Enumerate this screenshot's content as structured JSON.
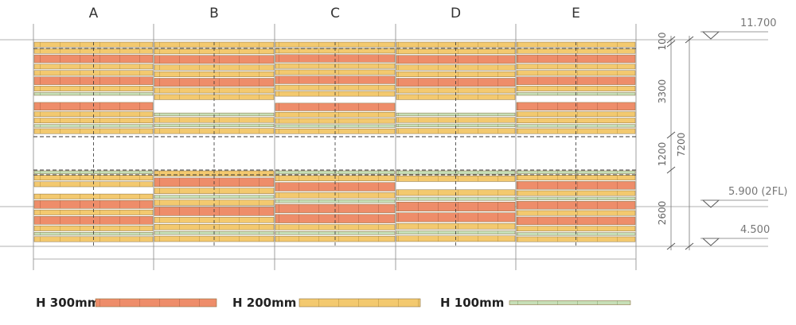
{
  "columns": [
    "A",
    "B",
    "C",
    "D",
    "E"
  ],
  "dimensions": {
    "d1": "100",
    "d2": "3300",
    "d3": "1200",
    "d4": "2600",
    "total": "7200"
  },
  "levels": [
    "11.700",
    "5.900 (2FL)",
    "4.500"
  ],
  "legend": [
    "H 300mm",
    "H 200mm",
    "H 100mm"
  ]
}
